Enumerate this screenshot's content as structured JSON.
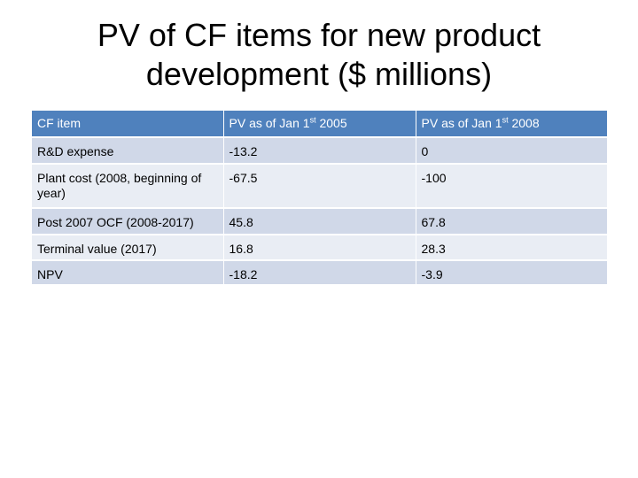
{
  "title": {
    "line1": "PV of CF items for new product",
    "line2": "development ($ millions)"
  },
  "table": {
    "headers": {
      "col1": "CF item",
      "col2_prefix": "PV as of Jan 1",
      "col2_sup": "st",
      "col2_suffix": " 2005",
      "col3_prefix": "PV as of Jan 1",
      "col3_sup": "st",
      "col3_suffix": " 2008"
    },
    "rows": [
      {
        "item": "R&D expense",
        "pv2005": "-13.2",
        "pv2008": "0"
      },
      {
        "item": "Plant cost (2008, beginning of year)",
        "pv2005": "-67.5",
        "pv2008": "-100"
      },
      {
        "item": "Post 2007 OCF (2008-2017)",
        "pv2005": "45.8",
        "pv2008": "67.8"
      },
      {
        "item": "Terminal value (2017)",
        "pv2005": "16.8",
        "pv2008": "28.3"
      },
      {
        "item": "NPV",
        "pv2005": "-18.2",
        "pv2008": "-3.9"
      }
    ]
  },
  "colors": {
    "header_bg": "#4f81bd",
    "row_dark": "#d0d8e8",
    "row_light": "#e9edf4"
  }
}
